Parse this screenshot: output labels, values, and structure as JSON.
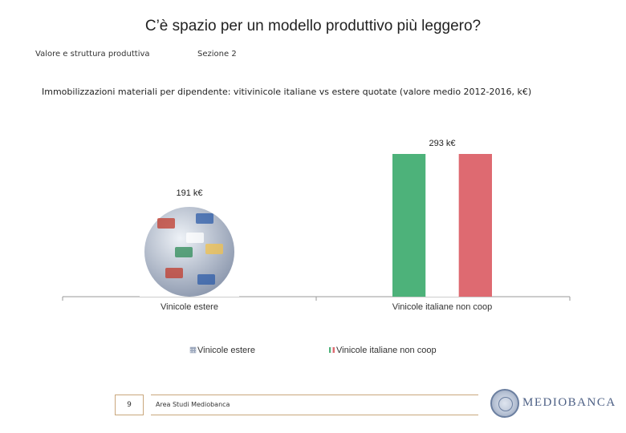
{
  "page": {
    "title": "C’è spazio per un modello produttivo più leggero?",
    "section_label": "Valore e struttura produttiva",
    "section_number": "Sezione 2",
    "page_number": "9",
    "department": "Area Studi Mediobanca",
    "logo_text": "MEDIOBANCA"
  },
  "chart_data": {
    "type": "bar",
    "title": "Immobilizzazioni materiali per dipendente: vitivinicole italiane vs estere quotate (valore medio 2012-2016, k€)",
    "categories": [
      "Vinicole estere",
      "Vinicole italiane non coop"
    ],
    "values": [
      191,
      293
    ],
    "data_labels": [
      "191 k€",
      "293 k€"
    ],
    "legend": [
      "Vinicole estere",
      "Vinicole italiane non coop"
    ],
    "legend_position": "bottom",
    "ylim": [
      0,
      300
    ],
    "xlabel": "",
    "ylabel": "",
    "grid": false,
    "colors": {
      "italy_green": "#4db27a",
      "italy_white": "#ffffff",
      "italy_red": "#de6a71",
      "globe_light": "#eef2f7",
      "globe_dark": "#8b97ad"
    }
  }
}
